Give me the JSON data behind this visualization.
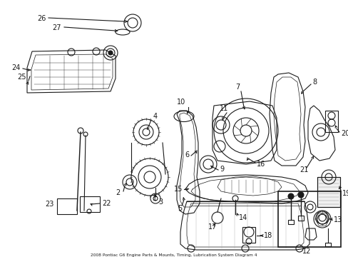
{
  "bg_color": "#ffffff",
  "line_color": "#1a1a1a",
  "fig_width": 4.89,
  "fig_height": 3.6,
  "dpi": 100,
  "title": "2008 Pontiac G6 Engine Parts & Mounts, Timing, Lubrication System Diagram 4"
}
